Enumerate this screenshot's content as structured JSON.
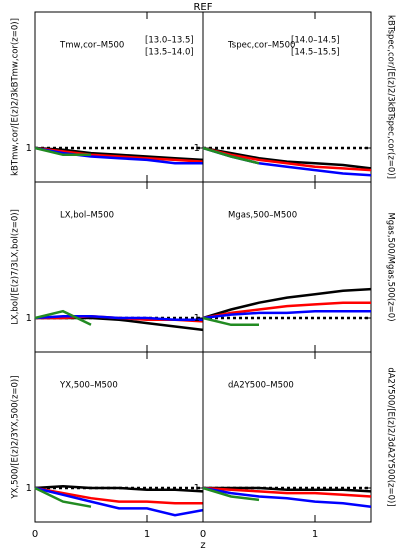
{
  "figure": {
    "title": "REF",
    "xlabel": "z"
  },
  "chart_data": [
    {
      "type": "line",
      "title": "Tmw,cor–M500",
      "ylabel": "kBTmw,cor/[E(z)2/3kBTmw,cor(z=0)]",
      "side": "left",
      "x": [
        0,
        0.25,
        0.5,
        0.75,
        1,
        1.25,
        1.5
      ],
      "xlim": [
        0,
        1.5
      ],
      "xticks": [
        0,
        1
      ],
      "ylim": [
        0.8,
        1.8
      ],
      "yticks": [
        1
      ],
      "hline": 1,
      "series": [
        {
          "name": "[13.0–13.5]",
          "color": "#000000",
          "values": [
            1,
            0.99,
            0.97,
            0.96,
            0.95,
            0.94,
            0.93
          ]
        },
        {
          "name": "[13.5–14.0]",
          "color": "#ff0000",
          "values": [
            1,
            0.98,
            0.96,
            0.95,
            0.94,
            0.93,
            0.92
          ]
        },
        {
          "color": "#0000ff",
          "values": [
            1,
            0.97,
            0.95,
            0.94,
            0.93,
            0.91,
            0.91
          ]
        },
        {
          "color": "#228b22",
          "values": [
            1,
            0.96,
            0.96,
            null,
            null,
            null,
            null
          ]
        }
      ]
    },
    {
      "type": "line",
      "title": "Tspec,cor–M500",
      "ylabel": "kBTspec,cor/[E(z)2/3kBTspec,cor(z=0)]",
      "side": "right",
      "x": [
        0,
        0.25,
        0.5,
        0.75,
        1,
        1.25,
        1.5
      ],
      "xlim": [
        0,
        1.5
      ],
      "xticks": [
        0,
        1
      ],
      "ylim": [
        0.8,
        1.8
      ],
      "yticks": [
        1
      ],
      "hline": 1,
      "series": [
        {
          "color": "#000000",
          "values": [
            1,
            0.97,
            0.94,
            0.92,
            0.91,
            0.9,
            0.88
          ]
        },
        {
          "color": "#ff0000",
          "values": [
            1,
            0.96,
            0.93,
            0.91,
            0.89,
            0.88,
            0.87
          ]
        },
        {
          "name": "[14.0–14.5]",
          "color": "#0000ff",
          "values": [
            1,
            0.95,
            0.91,
            0.89,
            0.87,
            0.85,
            0.84
          ]
        },
        {
          "name": "[14.5–15.5]",
          "color": "#228b22",
          "values": [
            1,
            0.95,
            0.91,
            null,
            null,
            null,
            null
          ]
        }
      ]
    },
    {
      "type": "line",
      "title": "LX,bol–M500",
      "ylabel": "LX,bol/[E(z)7/3LX,bol(z=0)]",
      "side": "left",
      "x": [
        0,
        0.25,
        0.5,
        0.75,
        1,
        1.25,
        1.5
      ],
      "xlim": [
        0,
        1.5
      ],
      "xticks": [
        0,
        1
      ],
      "ylim": [
        0.8,
        1.8
      ],
      "yticks": [
        1
      ],
      "hline": 1,
      "series": [
        {
          "color": "#000000",
          "values": [
            1,
            1.0,
            1.0,
            0.99,
            0.97,
            0.95,
            0.93
          ]
        },
        {
          "color": "#ff0000",
          "values": [
            1,
            1.0,
            1.01,
            1.0,
            0.99,
            0.99,
            0.98
          ]
        },
        {
          "color": "#0000ff",
          "values": [
            1,
            1.01,
            1.01,
            1.0,
            1.0,
            0.99,
            0.99
          ]
        },
        {
          "color": "#228b22",
          "values": [
            1,
            1.04,
            0.96,
            null,
            null,
            null,
            null
          ]
        }
      ]
    },
    {
      "type": "line",
      "title": "Mgas,500–M500",
      "ylabel": "Mgas,500/Mgas,500(z=0)",
      "side": "right",
      "x": [
        0,
        0.25,
        0.5,
        0.75,
        1,
        1.25,
        1.5
      ],
      "xlim": [
        0,
        1.5
      ],
      "xticks": [
        0,
        1
      ],
      "ylim": [
        0.8,
        1.8
      ],
      "yticks": [
        1
      ],
      "hline": 1,
      "series": [
        {
          "color": "#000000",
          "values": [
            1,
            1.05,
            1.09,
            1.12,
            1.14,
            1.16,
            1.17
          ]
        },
        {
          "color": "#ff0000",
          "values": [
            1,
            1.03,
            1.05,
            1.07,
            1.08,
            1.09,
            1.09
          ]
        },
        {
          "color": "#0000ff",
          "values": [
            1,
            1.02,
            1.03,
            1.03,
            1.04,
            1.04,
            1.04
          ]
        },
        {
          "color": "#228b22",
          "values": [
            1,
            0.96,
            0.96,
            null,
            null,
            null,
            null
          ]
        }
      ]
    },
    {
      "type": "line",
      "title": "YX,500–M500",
      "ylabel": "YX,500/[E(z)2/3YX,500(z=0)]",
      "side": "left",
      "x": [
        0,
        0.25,
        0.5,
        0.75,
        1,
        1.25,
        1.5
      ],
      "xlim": [
        0,
        1.5
      ],
      "xticks": [
        0,
        1
      ],
      "ylim": [
        0.8,
        1.8
      ],
      "yticks": [
        1
      ],
      "hline": 1,
      "series": [
        {
          "color": "#000000",
          "values": [
            1,
            1.01,
            1.0,
            1.0,
            0.99,
            0.99,
            0.98
          ]
        },
        {
          "color": "#ff0000",
          "values": [
            1,
            0.97,
            0.94,
            0.92,
            0.92,
            0.91,
            0.91
          ]
        },
        {
          "color": "#0000ff",
          "values": [
            1,
            0.96,
            0.92,
            0.88,
            0.88,
            0.84,
            0.87
          ]
        },
        {
          "color": "#228b22",
          "values": [
            1,
            0.92,
            0.89,
            null,
            null,
            null,
            null
          ]
        }
      ]
    },
    {
      "type": "line",
      "title": "dA2Y500–M500",
      "ylabel": "dA2Y500/[E(z)2/3dA2Y500(z=0)]",
      "side": "right",
      "x": [
        0,
        0.25,
        0.5,
        0.75,
        1,
        1.25,
        1.5
      ],
      "xlim": [
        0,
        1.5
      ],
      "xticks": [
        0,
        1
      ],
      "ylim": [
        0.8,
        1.8
      ],
      "yticks": [
        1
      ],
      "hline": 1,
      "series": [
        {
          "color": "#000000",
          "values": [
            1,
            1.0,
            1.0,
            0.99,
            0.99,
            0.99,
            0.98
          ]
        },
        {
          "color": "#ff0000",
          "values": [
            1,
            0.99,
            0.98,
            0.97,
            0.97,
            0.96,
            0.95
          ]
        },
        {
          "color": "#0000ff",
          "values": [
            1,
            0.97,
            0.95,
            0.94,
            0.92,
            0.91,
            0.89
          ]
        },
        {
          "color": "#228b22",
          "values": [
            1,
            0.95,
            0.93,
            null,
            null,
            null,
            null
          ]
        }
      ]
    }
  ]
}
